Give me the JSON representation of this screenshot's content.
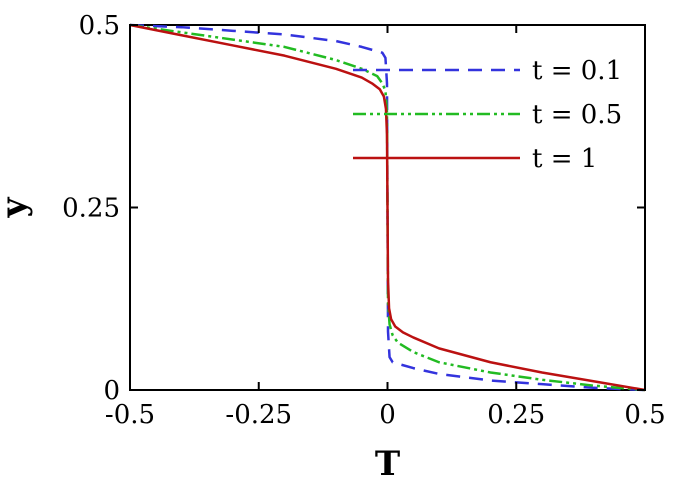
{
  "chart_data": {
    "type": "line",
    "title": "",
    "xlabel": "T",
    "ylabel": "y",
    "xlim": [
      -0.5,
      0.5
    ],
    "ylim": [
      0,
      0.5
    ],
    "x_ticks": [
      "-0.5",
      "-0.25",
      "0",
      "0.25",
      "0.5"
    ],
    "y_ticks": [
      "0",
      "0.25",
      "0.5"
    ],
    "x_tick_values": [
      -0.5,
      -0.25,
      0,
      0.25,
      0.5
    ],
    "y_tick_values": [
      0,
      0.25,
      0.5
    ],
    "grid": false,
    "legend_position": "top-right",
    "series": [
      {
        "name": "t = 0.1",
        "color": "#3333dd",
        "style": "dashed",
        "points": [
          [
            -0.5,
            0.5
          ],
          [
            -0.4,
            0.497
          ],
          [
            -0.3,
            0.492
          ],
          [
            -0.2,
            0.487
          ],
          [
            -0.1,
            0.478
          ],
          [
            -0.05,
            0.47
          ],
          [
            -0.02,
            0.464
          ],
          [
            -0.01,
            0.462
          ],
          [
            -0.004,
            0.455
          ],
          [
            -0.001,
            0.42
          ],
          [
            0,
            0.25
          ],
          [
            0.001,
            0.08
          ],
          [
            0.004,
            0.045
          ],
          [
            0.01,
            0.038
          ],
          [
            0.02,
            0.036
          ],
          [
            0.05,
            0.03
          ],
          [
            0.1,
            0.022
          ],
          [
            0.2,
            0.013
          ],
          [
            0.3,
            0.008
          ],
          [
            0.4,
            0.003
          ],
          [
            0.5,
            0.0
          ]
        ]
      },
      {
        "name": "t = 0.5",
        "color": "#22bb22",
        "style": "dash-dot-dot",
        "points": [
          [
            -0.5,
            0.5
          ],
          [
            -0.4,
            0.49
          ],
          [
            -0.3,
            0.48
          ],
          [
            -0.2,
            0.47
          ],
          [
            -0.1,
            0.452
          ],
          [
            -0.05,
            0.44
          ],
          [
            -0.02,
            0.43
          ],
          [
            -0.01,
            0.42
          ],
          [
            -0.004,
            0.41
          ],
          [
            -0.001,
            0.38
          ],
          [
            0,
            0.25
          ],
          [
            0.001,
            0.12
          ],
          [
            0.004,
            0.09
          ],
          [
            0.01,
            0.075
          ],
          [
            0.02,
            0.065
          ],
          [
            0.05,
            0.052
          ],
          [
            0.1,
            0.038
          ],
          [
            0.2,
            0.024
          ],
          [
            0.3,
            0.014
          ],
          [
            0.4,
            0.006
          ],
          [
            0.5,
            0.0
          ]
        ]
      },
      {
        "name": "t = 1",
        "color": "#bb1111",
        "style": "solid",
        "points": [
          [
            -0.5,
            0.5
          ],
          [
            -0.4,
            0.486
          ],
          [
            -0.3,
            0.472
          ],
          [
            -0.2,
            0.458
          ],
          [
            -0.1,
            0.44
          ],
          [
            -0.05,
            0.428
          ],
          [
            -0.03,
            0.42
          ],
          [
            -0.015,
            0.412
          ],
          [
            -0.007,
            0.402
          ],
          [
            -0.003,
            0.385
          ],
          [
            -0.001,
            0.35
          ],
          [
            0,
            0.25
          ],
          [
            0.001,
            0.15
          ],
          [
            0.003,
            0.112
          ],
          [
            0.007,
            0.097
          ],
          [
            0.015,
            0.087
          ],
          [
            0.03,
            0.079
          ],
          [
            0.05,
            0.072
          ],
          [
            0.1,
            0.057
          ],
          [
            0.2,
            0.038
          ],
          [
            0.3,
            0.024
          ],
          [
            0.4,
            0.012
          ],
          [
            0.5,
            0.0
          ]
        ]
      }
    ]
  }
}
